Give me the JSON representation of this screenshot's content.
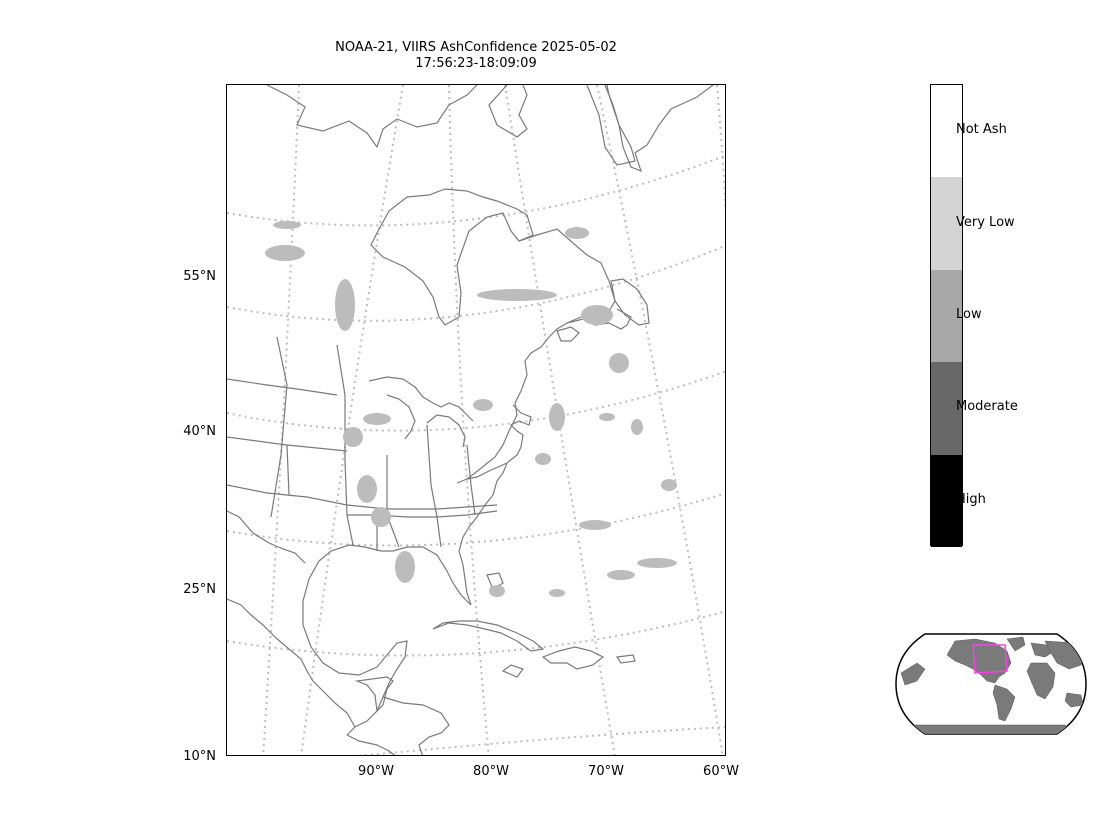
{
  "title": {
    "line1": "NOAA-21, VIIRS AshConfidence 2025-05-02",
    "line2": "17:56:23-18:09:09"
  },
  "lat_labels": [
    "55°N",
    "40°N",
    "25°N",
    "10°N"
  ],
  "lon_labels": [
    "90°W",
    "80°W",
    "70°W",
    "60°W"
  ],
  "colorbar": {
    "categories": [
      {
        "label": "Not Ash",
        "color": "#ffffff"
      },
      {
        "label": "Very Low",
        "color": "#d4d4d4"
      },
      {
        "label": "Low",
        "color": "#a8a8a8"
      },
      {
        "label": "Moderate",
        "color": "#686868"
      },
      {
        "label": "High",
        "color": "#000000"
      }
    ]
  },
  "colors": {
    "coastline": "#7a7a7a",
    "gridline": "#bdbdbd",
    "inset_land": "#7a7a7a",
    "inset_box": "#ff3df0"
  }
}
